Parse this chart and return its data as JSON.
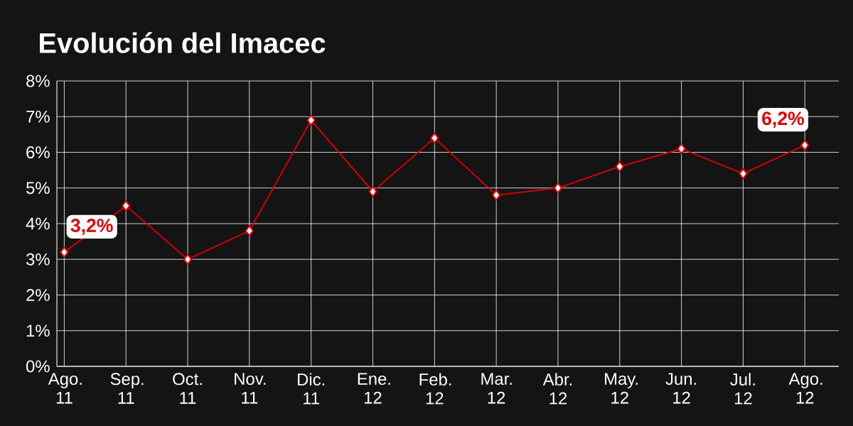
{
  "chart_data": {
    "type": "line",
    "title": "Evolución del Imacec",
    "categories": [
      "Ago. 11",
      "Sep. 11",
      "Oct. 11",
      "Nov. 11",
      "Dic. 11",
      "Ene. 12",
      "Feb. 12",
      "Mar. 12",
      "Abr. 12",
      "May. 12",
      "Jun. 12",
      "Jul. 12",
      "Ago. 12"
    ],
    "series": [
      {
        "color": "#dd0000",
        "values": [
          3.2,
          4.5,
          3.0,
          3.8,
          6.9,
          4.9,
          6.4,
          4.8,
          5.0,
          5.6,
          6.1,
          5.4,
          6.2
        ],
        "value_labels": [
          "3,2%",
          null,
          null,
          null,
          null,
          null,
          null,
          null,
          null,
          null,
          null,
          null,
          "6,2%"
        ]
      }
    ],
    "ylim": [
      0,
      8
    ],
    "yticks": [
      {
        "value": 0,
        "label": "0%"
      },
      {
        "value": 1,
        "label": "1%"
      },
      {
        "value": 2,
        "label": "2%"
      },
      {
        "value": 3,
        "label": "3%"
      },
      {
        "value": 4,
        "label": "4%"
      },
      {
        "value": 5,
        "label": "5%"
      },
      {
        "value": 6,
        "label": "6%"
      },
      {
        "value": 7,
        "label": "7%"
      },
      {
        "value": 8,
        "label": "8%"
      }
    ],
    "grid": true,
    "marker": "diamond",
    "line_style": "solid"
  }
}
